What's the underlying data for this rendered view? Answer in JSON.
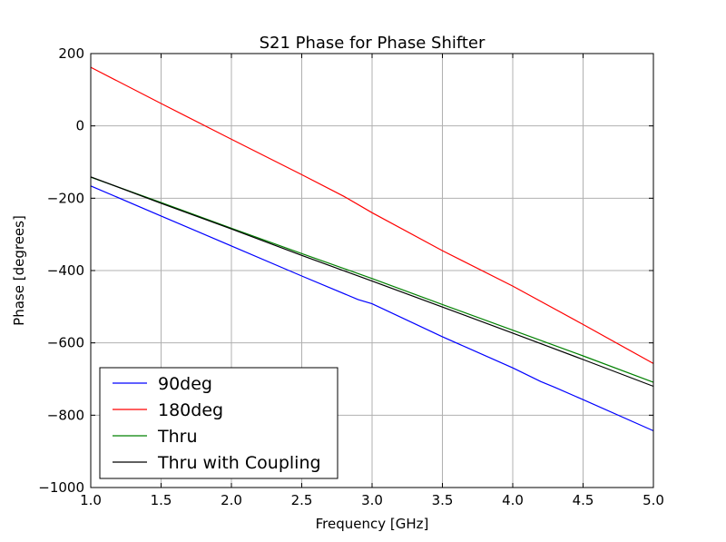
{
  "chart_data": {
    "type": "line",
    "title": "S21 Phase for Phase Shifter",
    "xlabel": "Frequency [GHz]",
    "ylabel": "Phase [degrees]",
    "xlim": [
      1.0,
      5.0
    ],
    "ylim": [
      -1000,
      200
    ],
    "xticks": [
      "1.0",
      "1.5",
      "2.0",
      "2.5",
      "3.0",
      "3.5",
      "4.0",
      "4.5",
      "5.0"
    ],
    "yticks": [
      "200",
      "0",
      "−200",
      "−400",
      "−600",
      "−800",
      "−1000"
    ],
    "grid": true,
    "legend_position": "lower-left",
    "series": [
      {
        "name": "90deg",
        "color": "#0000ff",
        "points": [
          [
            1.0,
            -166
          ],
          [
            1.5,
            -249
          ],
          [
            2.0,
            -332
          ],
          [
            2.5,
            -415
          ],
          [
            2.9,
            -480
          ],
          [
            3.0,
            -492
          ],
          [
            3.5,
            -583
          ],
          [
            4.0,
            -669
          ],
          [
            4.2,
            -707
          ],
          [
            4.3,
            -723
          ],
          [
            4.5,
            -757
          ],
          [
            5.0,
            -843
          ]
        ]
      },
      {
        "name": "180deg",
        "color": "#ff0000",
        "points": [
          [
            1.0,
            162
          ],
          [
            1.5,
            62
          ],
          [
            2.0,
            -37
          ],
          [
            2.5,
            -135
          ],
          [
            2.8,
            -195
          ],
          [
            3.0,
            -240
          ],
          [
            3.5,
            -345
          ],
          [
            4.0,
            -443
          ],
          [
            4.5,
            -549
          ],
          [
            5.0,
            -657
          ]
        ]
      },
      {
        "name": "Thru",
        "color": "#008000",
        "points": [
          [
            1.0,
            -142
          ],
          [
            1.5,
            -212
          ],
          [
            2.0,
            -283
          ],
          [
            2.5,
            -353
          ],
          [
            3.0,
            -422
          ],
          [
            3.5,
            -494
          ],
          [
            4.0,
            -565
          ],
          [
            4.5,
            -636
          ],
          [
            5.0,
            -709
          ]
        ]
      },
      {
        "name": "Thru with Coupling",
        "color": "#000000",
        "points": [
          [
            1.0,
            -141
          ],
          [
            1.5,
            -214
          ],
          [
            2.0,
            -285
          ],
          [
            2.5,
            -358
          ],
          [
            3.0,
            -429
          ],
          [
            3.5,
            -501
          ],
          [
            4.0,
            -573
          ],
          [
            4.5,
            -646
          ],
          [
            5.0,
            -720
          ]
        ]
      }
    ]
  }
}
